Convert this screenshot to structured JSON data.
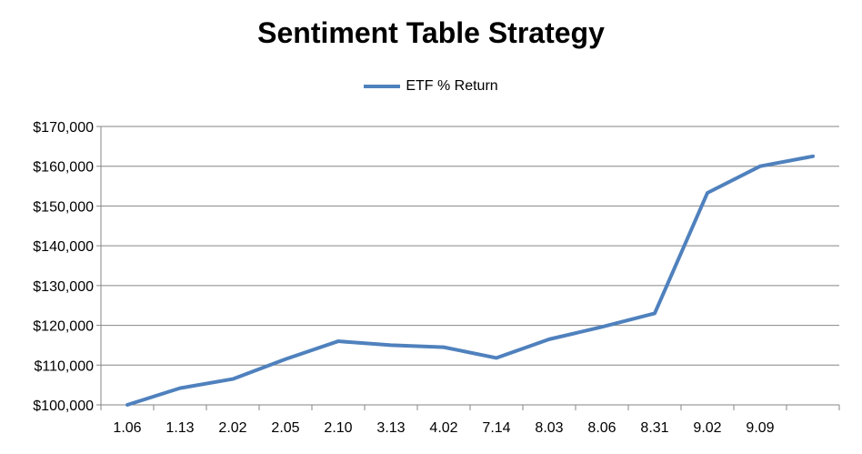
{
  "chart_data": {
    "type": "line",
    "title": "Sentiment Table Strategy",
    "xlabel": "",
    "ylabel": "",
    "categories": [
      "1.06",
      "1.13",
      "2.02",
      "2.05",
      "2.10",
      "3.13",
      "4.02",
      "7.14",
      "8.03",
      "8.06",
      "8.31",
      "9.02",
      "9.09",
      ""
    ],
    "series": [
      {
        "name": "ETF % Return",
        "color": "#4F81BD",
        "values": [
          100000,
          104200,
          106500,
          111500,
          116000,
          115000,
          114500,
          111800,
          116500,
          119600,
          123000,
          153300,
          160000,
          162500
        ]
      }
    ],
    "ylim": [
      100000,
      170000
    ],
    "yticks": [
      "$100,000",
      "$110,000",
      "$120,000",
      "$130,000",
      "$140,000",
      "$150,000",
      "$160,000",
      "$170,000"
    ],
    "ytick_values": [
      100000,
      110000,
      120000,
      130000,
      140000,
      150000,
      160000,
      170000
    ],
    "grid": true,
    "legend_position": "top-center"
  }
}
